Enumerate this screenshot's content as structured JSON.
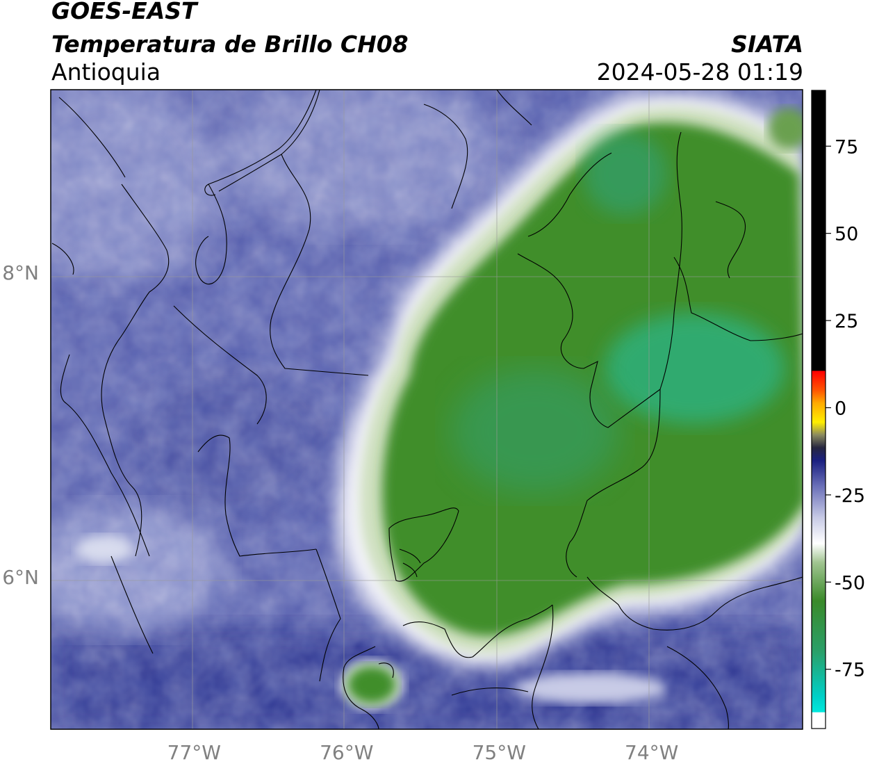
{
  "header": {
    "satellite": "GOES-EAST",
    "product": "Temperatura de Brillo CH08",
    "region": "Antioquia",
    "agency": "SIATA",
    "datetime": "2024-05-28 01:19"
  },
  "map": {
    "lon_range": [
      -77.94,
      -73.01
    ],
    "lat_range": [
      5.0,
      9.2
    ],
    "lon_ticks": [
      "77°W",
      "76°W",
      "75°W",
      "74°W"
    ],
    "lon_tick_values": [
      -77,
      -76,
      -75,
      -74
    ],
    "lat_ticks": [
      "8°N",
      "6°N"
    ],
    "lat_tick_values": [
      8,
      6
    ],
    "gridlines": true
  },
  "colorbar": {
    "ticks": [
      "75",
      "50",
      "25",
      "0",
      "-25",
      "-50",
      "-75"
    ],
    "tick_values": [
      75,
      50,
      25,
      0,
      -25,
      -50,
      -75
    ],
    "range": [
      -92,
      91
    ],
    "colors": {
      "warm_black": "#000000",
      "red": "#ff1a00",
      "orange": "#ff9900",
      "yellow": "#ffee00",
      "dark_blue": "#131a7a",
      "blue": "#4a4fa8",
      "lavender": "#c8cbe6",
      "white": "#ffffff",
      "light_green": "#cfe0c0",
      "green": "#3a8a2a",
      "teal": "#22b07a",
      "cyan": "#00e0d8"
    }
  },
  "colors": {
    "cold_cloud_green": "#3f8e2c",
    "cold_cloud_teal": "#2fb07c",
    "clear_purple": "#5a60ad",
    "dark_blue": "#2f3590",
    "border": "#000000",
    "grid": "#9a9a9a",
    "tick_label": "#808080"
  }
}
